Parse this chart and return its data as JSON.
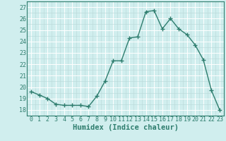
{
  "x": [
    0,
    1,
    2,
    3,
    4,
    5,
    6,
    7,
    8,
    9,
    10,
    11,
    12,
    13,
    14,
    15,
    16,
    17,
    18,
    19,
    20,
    21,
    22,
    23
  ],
  "y": [
    19.6,
    19.3,
    19.0,
    18.5,
    18.4,
    18.4,
    18.4,
    18.3,
    19.2,
    20.5,
    22.3,
    22.3,
    24.3,
    24.4,
    26.6,
    26.7,
    25.1,
    26.0,
    25.1,
    24.6,
    23.7,
    22.4,
    19.7,
    18.0
  ],
  "line_color": "#2e7d6e",
  "marker": "+",
  "markersize": 4,
  "linewidth": 1.0,
  "bg_color": "#d0eeee",
  "grid_major_color": "#ffffff",
  "grid_minor_color": "#b8d8d8",
  "xlabel": "Humidex (Indice chaleur)",
  "ylim": [
    17.5,
    27.5
  ],
  "xlim": [
    -0.5,
    23.5
  ],
  "yticks": [
    18,
    19,
    20,
    21,
    22,
    23,
    24,
    25,
    26,
    27
  ],
  "xticks": [
    0,
    1,
    2,
    3,
    4,
    5,
    6,
    7,
    8,
    9,
    10,
    11,
    12,
    13,
    14,
    15,
    16,
    17,
    18,
    19,
    20,
    21,
    22,
    23
  ],
  "tick_fontsize": 6,
  "xlabel_fontsize": 7.5
}
